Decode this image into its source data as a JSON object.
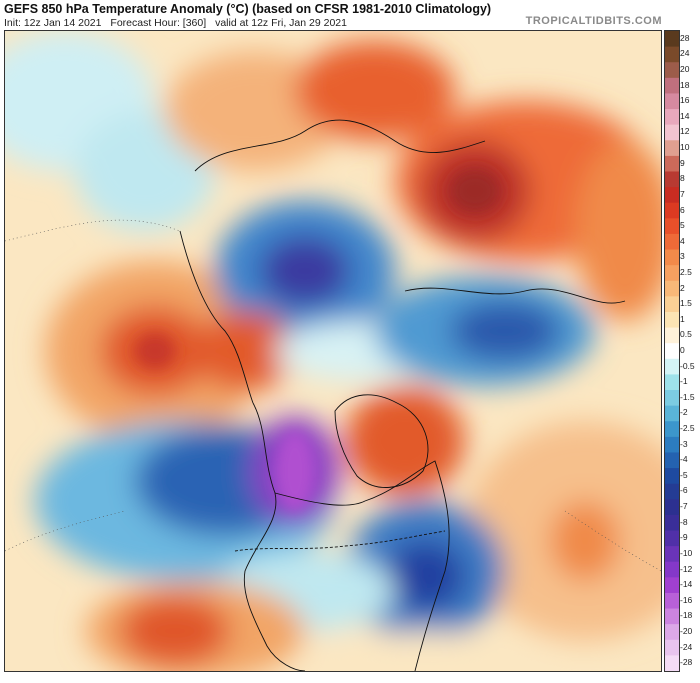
{
  "header": {
    "title": "GEFS 850 hPa Temperature Anomaly (°C) (based on CFSR 1981-2010 Climatology)",
    "init": "Init: 12z Jan 14 2021",
    "forecast_hour": "Forecast Hour: [360]",
    "valid": "valid at 12z Fri, Jan 29 2021",
    "site": "TROPICALTIDBITS.COM"
  },
  "colorbar": {
    "labels": [
      "28",
      "24",
      "20",
      "18",
      "16",
      "14",
      "12",
      "10",
      "9",
      "8",
      "7",
      "6",
      "5",
      "4",
      "3",
      "2.5",
      "2",
      "1.5",
      "1",
      "0.5",
      "0",
      "-0.5",
      "-1",
      "-1.5",
      "-2",
      "-2.5",
      "-3",
      "-4",
      "-5",
      "-6",
      "-7",
      "-8",
      "-9",
      "-10",
      "-12",
      "-14",
      "-16",
      "-18",
      "-20",
      "-24",
      "-28"
    ],
    "colors": [
      "#5a3a1e",
      "#7a4a2a",
      "#9c5c4a",
      "#c0707e",
      "#d68aa0",
      "#e8a8bc",
      "#f2c4d0",
      "#e0a090",
      "#cc6a5a",
      "#b83a32",
      "#c82c22",
      "#dc3a22",
      "#e8502a",
      "#ee6a38",
      "#f28a4a",
      "#f6a060",
      "#f8b878",
      "#fad095",
      "#fce4b4",
      "#fff2da",
      "#ffffff",
      "#d4f4f6",
      "#9ee2ea",
      "#7ccce2",
      "#5ab4d8",
      "#3c96cc",
      "#2c7cc0",
      "#2462b0",
      "#1e4aa0",
      "#243c94",
      "#2c3090",
      "#3a2e98",
      "#5030a8",
      "#6a34b8",
      "#8438c8",
      "#a040d0",
      "#b860d8",
      "#cc84e0",
      "#dca8e8",
      "#e8c4ee",
      "#f4dcf6"
    ]
  }
}
